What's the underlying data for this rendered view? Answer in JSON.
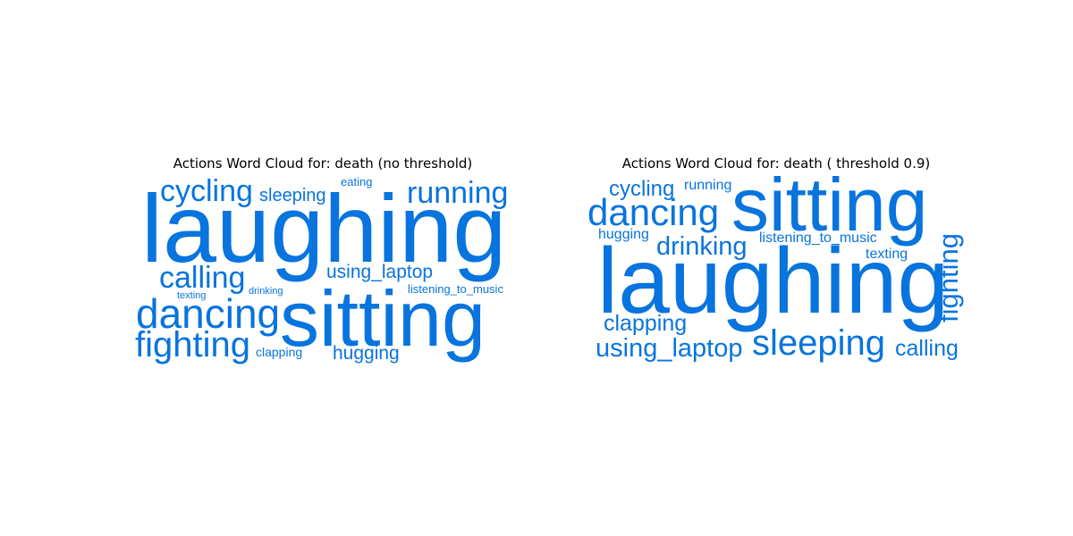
{
  "word_color": "#0874de",
  "panels": [
    {
      "title": "Actions Word Cloud for: death (no threshold)",
      "words": [
        {
          "text": "laughing"
        },
        {
          "text": "sitting"
        },
        {
          "text": "cycling"
        },
        {
          "text": "sleeping"
        },
        {
          "text": "eating"
        },
        {
          "text": "running"
        },
        {
          "text": "calling"
        },
        {
          "text": "using_laptop"
        },
        {
          "text": "texting"
        },
        {
          "text": "drinking"
        },
        {
          "text": "listening_to_music"
        },
        {
          "text": "dancing"
        },
        {
          "text": "fighting"
        },
        {
          "text": "clapping"
        },
        {
          "text": "hugging"
        }
      ]
    },
    {
      "title": "Actions Word Cloud for: death ( threshold 0.9)",
      "words": [
        {
          "text": "sitting"
        },
        {
          "text": "laughing"
        },
        {
          "text": "cycling"
        },
        {
          "text": "running"
        },
        {
          "text": "dancing"
        },
        {
          "text": "hugging"
        },
        {
          "text": "drinking"
        },
        {
          "text": "listening_to_music"
        },
        {
          "text": "texting"
        },
        {
          "text": "fighting"
        },
        {
          "text": "clapping"
        },
        {
          "text": "using_laptop"
        },
        {
          "text": "sleeping"
        },
        {
          "text": "calling"
        }
      ]
    }
  ]
}
